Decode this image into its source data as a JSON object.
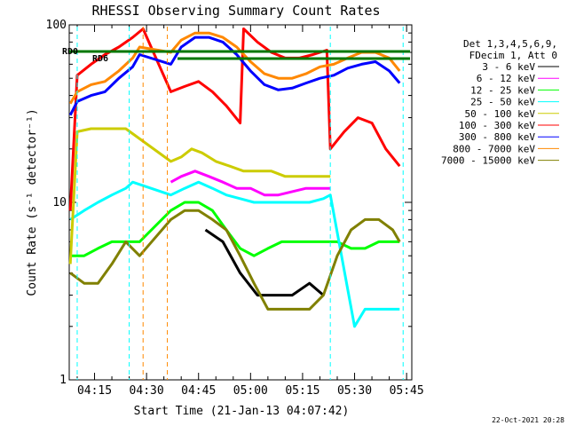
{
  "chart_data": {
    "type": "line",
    "title": "RHESSI Observing Summary Count Rates",
    "xlabel": "Start Time (21-Jan-13 04:07:42)",
    "ylabel": "Count Rate (s⁻¹ detector⁻¹)",
    "ylog": true,
    "ylim": [
      1,
      100
    ],
    "xlim": [
      "04:07:42",
      "05:46:30"
    ],
    "xticks": [
      "04:15",
      "04:30",
      "04:45",
      "05:00",
      "05:15",
      "05:30",
      "05:45"
    ],
    "yticks": [
      "1",
      "10",
      "100"
    ],
    "legend_header": [
      "Det 1,3,4,5,6,9,",
      "FDecim 1, Att 0"
    ],
    "legend_position": "right",
    "annotations": [
      "RD0",
      "RD6"
    ],
    "footer_date": "22-Oct-2021 20:28",
    "colors": {
      "3-6": "#000000",
      "6-12": "#ff00ff",
      "12-25": "#00ff00",
      "25-50": "#00ffff",
      "50-100": "#cccc00",
      "100-300": "#ff0000",
      "300-800": "#0000ff",
      "800-7000": "#ff8800",
      "7000-15000": "#808000",
      "annotation": "#007700"
    },
    "series": [
      {
        "name": "3 - 6 keV",
        "color": "#000000",
        "x": [
          "04:47",
          "04:52",
          "04:57",
          "05:02",
          "05:07",
          "05:12",
          "05:17",
          "05:21"
        ],
        "y": [
          7,
          6,
          4,
          3,
          3,
          3,
          3.5,
          3
        ]
      },
      {
        "name": "6 - 12 keV",
        "color": "#ff00ff",
        "x": [
          "04:37",
          "04:40",
          "04:44",
          "04:48",
          "04:52",
          "04:56",
          "05:00",
          "05:04",
          "05:08",
          "05:12",
          "05:16",
          "05:20",
          "05:23"
        ],
        "y": [
          13,
          14,
          15,
          14,
          13,
          12,
          12,
          11,
          11,
          11.5,
          12,
          12,
          12
        ]
      },
      {
        "name": "12 - 25 keV",
        "color": "#00ff00",
        "x": [
          "04:08",
          "04:12",
          "04:16",
          "04:20",
          "04:24",
          "04:28",
          "04:37",
          "04:41",
          "04:45",
          "04:49",
          "04:53",
          "04:57",
          "05:01",
          "05:05",
          "05:09",
          "05:13",
          "05:17",
          "05:21",
          "05:25",
          "05:29",
          "05:33",
          "05:37",
          "05:41",
          "05:43"
        ],
        "y": [
          5,
          5,
          5.5,
          6,
          6,
          6,
          9,
          10,
          10,
          9,
          7,
          5.5,
          5,
          5.5,
          6,
          6,
          6,
          6,
          6,
          5.5,
          5.5,
          6,
          6,
          6
        ]
      },
      {
        "name": "25 - 50 keV",
        "color": "#00ffff",
        "x": [
          "04:08",
          "04:12",
          "04:16",
          "04:20",
          "04:24",
          "04:26",
          "04:37",
          "04:41",
          "04:45",
          "04:49",
          "04:53",
          "04:57",
          "05:01",
          "05:05",
          "05:09",
          "05:13",
          "05:17",
          "05:21",
          "05:23",
          "05:30",
          "05:33",
          "05:36",
          "05:40",
          "05:43"
        ],
        "y": [
          8,
          9,
          10,
          11,
          12,
          13,
          11,
          12,
          13,
          12,
          11,
          10.5,
          10,
          10,
          10,
          10,
          10,
          10.5,
          11,
          2,
          2.5,
          2.5,
          2.5,
          2.5
        ]
      },
      {
        "name": "50 - 100 keV",
        "color": "#cccc00",
        "x": [
          "04:08",
          "04:10",
          "04:14",
          "04:18",
          "04:22",
          "04:24",
          "04:37",
          "04:40",
          "04:43",
          "04:46",
          "04:50",
          "04:54",
          "04:58",
          "05:02",
          "05:06",
          "05:10",
          "05:14",
          "05:18",
          "05:22",
          "05:23"
        ],
        "y": [
          4.5,
          25,
          26,
          26,
          26,
          26,
          17,
          18,
          20,
          19,
          17,
          16,
          15,
          15,
          15,
          14,
          14,
          14,
          14,
          14
        ]
      },
      {
        "name": "100 - 300 keV",
        "color": "#ff0000",
        "x": [
          "04:08",
          "04:10",
          "04:14",
          "04:18",
          "04:22",
          "04:26",
          "04:29",
          "04:37",
          "04:41",
          "04:45",
          "04:49",
          "04:53",
          "04:57",
          "04:58",
          "05:02",
          "05:06",
          "05:10",
          "05:14",
          "05:18",
          "05:22",
          "05:23",
          "05:27",
          "05:31",
          "05:35",
          "05:39",
          "05:43"
        ],
        "y": [
          9,
          52,
          60,
          68,
          75,
          85,
          95,
          42,
          45,
          48,
          42,
          35,
          28,
          95,
          80,
          70,
          65,
          65,
          68,
          72,
          20,
          25,
          30,
          28,
          20,
          16
        ]
      },
      {
        "name": "300 - 800 keV",
        "color": "#0000ff",
        "x": [
          "04:08",
          "04:10",
          "04:14",
          "04:18",
          "04:22",
          "04:26",
          "04:28",
          "04:37",
          "04:40",
          "04:44",
          "04:48",
          "04:52",
          "04:56",
          "05:00",
          "05:04",
          "05:08",
          "05:12",
          "05:16",
          "05:20",
          "05:24",
          "05:28",
          "05:32",
          "05:36",
          "05:40",
          "05:43"
        ],
        "y": [
          31,
          37,
          40,
          42,
          50,
          58,
          68,
          60,
          75,
          85,
          85,
          80,
          68,
          55,
          46,
          43,
          44,
          47,
          50,
          52,
          57,
          60,
          62,
          55,
          47
        ]
      },
      {
        "name": "800 - 7000 keV",
        "color": "#ff8800",
        "x": [
          "04:08",
          "04:10",
          "04:14",
          "04:18",
          "04:22",
          "04:26",
          "04:28",
          "04:37",
          "04:40",
          "04:44",
          "04:48",
          "04:52",
          "04:56",
          "05:00",
          "05:04",
          "05:08",
          "05:12",
          "05:16",
          "05:20",
          "05:24",
          "05:28",
          "05:32",
          "05:36",
          "05:40",
          "05:43"
        ],
        "y": [
          36,
          42,
          46,
          48,
          55,
          65,
          75,
          70,
          82,
          90,
          90,
          85,
          75,
          62,
          53,
          50,
          50,
          53,
          58,
          60,
          65,
          70,
          70,
          65,
          55
        ]
      },
      {
        "name": "7000 - 15000 keV",
        "color": "#808000",
        "x": [
          "04:08",
          "04:12",
          "04:16",
          "04:20",
          "04:24",
          "04:28",
          "04:37",
          "04:41",
          "04:45",
          "04:49",
          "04:53",
          "04:57",
          "05:01",
          "05:05",
          "05:09",
          "05:13",
          "05:17",
          "05:21",
          "05:25",
          "05:29",
          "05:33",
          "05:37",
          "05:41",
          "05:43"
        ],
        "y": [
          4,
          3.5,
          3.5,
          4.5,
          6,
          5,
          8,
          9,
          9,
          8,
          7,
          5,
          3.5,
          2.5,
          2.5,
          2.5,
          2.5,
          3,
          5,
          7,
          8,
          8,
          7,
          6
        ]
      }
    ]
  }
}
